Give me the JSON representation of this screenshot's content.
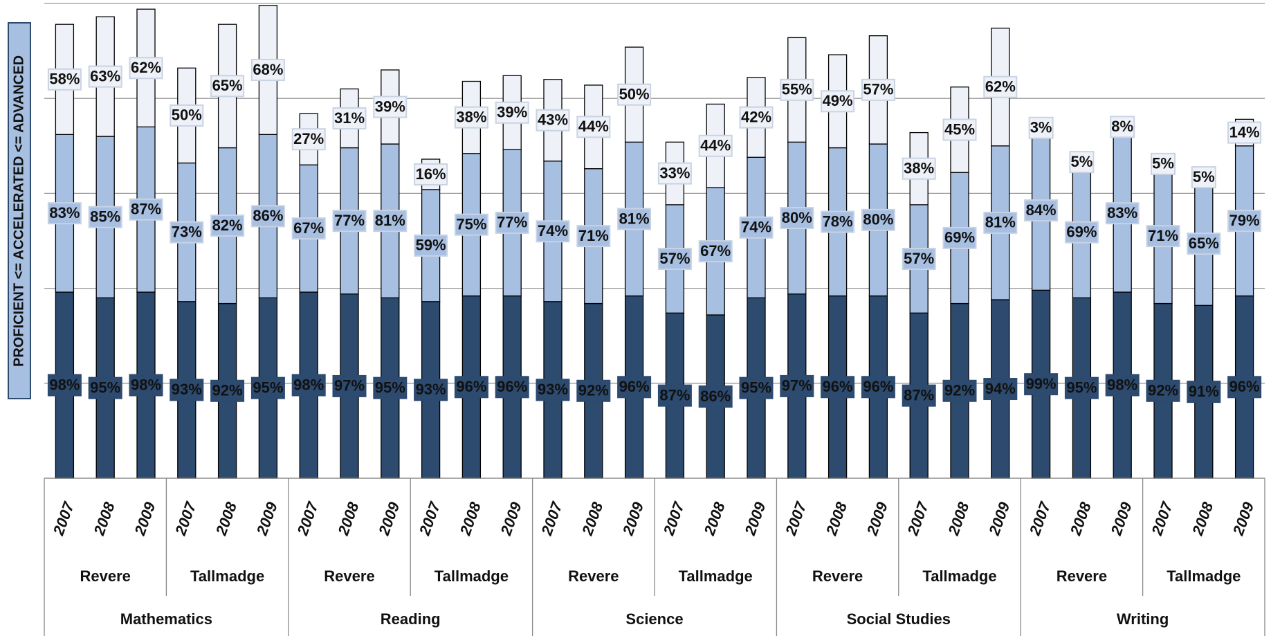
{
  "chart_data": {
    "type": "stacked_bar",
    "y_label": "PROFICIENT <= ACCELERATED <= ADVANCED",
    "categories": [
      "2007",
      "2008",
      "2009",
      "2007",
      "2008",
      "2009",
      "2007",
      "2008",
      "2009",
      "2007",
      "2008",
      "2009",
      "2007",
      "2008",
      "2009",
      "2007",
      "2008",
      "2009",
      "2007",
      "2008",
      "2009",
      "2007",
      "2008",
      "2009",
      "2007",
      "2008",
      "2009",
      "2007",
      "2008",
      "2009"
    ],
    "category_groups": [
      "Revere",
      "Tallmadge",
      "Revere",
      "Tallmadge",
      "Revere",
      "Tallmadge",
      "Revere",
      "Tallmadge",
      "Revere",
      "Tallmadge"
    ],
    "category_supergroups": [
      "Mathematics",
      "Reading",
      "Science",
      "Social Studies",
      "Writing"
    ],
    "series": [
      {
        "color": "#2d4a6f",
        "label_color": "#ffffff",
        "values": [
          98,
          95,
          98,
          93,
          92,
          95,
          98,
          97,
          95,
          93,
          96,
          96,
          93,
          92,
          96,
          87,
          86,
          95,
          97,
          96,
          96,
          87,
          92,
          94,
          99,
          95,
          98,
          92,
          91,
          96
        ],
        "value_labels": [
          "98%",
          "95%",
          "98%",
          "93%",
          "92%",
          "95%",
          "98%",
          "97%",
          "95%",
          "93%",
          "96%",
          "96%",
          "93%",
          "92%",
          "96%",
          "87%",
          "86%",
          "95%",
          "97%",
          "96%",
          "96%",
          "87%",
          "92%",
          "94%",
          "99%",
          "95%",
          "98%",
          "92%",
          "91%",
          "96%"
        ]
      },
      {
        "color": "#a7bfe1",
        "label_color": "#111111",
        "values": [
          83,
          85,
          87,
          73,
          82,
          86,
          67,
          77,
          81,
          59,
          75,
          77,
          74,
          71,
          81,
          57,
          67,
          74,
          80,
          78,
          80,
          57,
          69,
          81,
          84,
          69,
          83,
          71,
          65,
          79
        ],
        "value_labels": [
          "83%",
          "85%",
          "87%",
          "73%",
          "82%",
          "86%",
          "67%",
          "77%",
          "81%",
          "59%",
          "75%",
          "77%",
          "74%",
          "71%",
          "81%",
          "57%",
          "67%",
          "74%",
          "80%",
          "78%",
          "80%",
          "57%",
          "69%",
          "81%",
          "84%",
          "69%",
          "83%",
          "71%",
          "65%",
          "79%"
        ]
      },
      {
        "color": "#eef2f8",
        "label_color": "#111111",
        "values": [
          58,
          63,
          62,
          50,
          65,
          68,
          27,
          31,
          39,
          16,
          38,
          39,
          43,
          44,
          50,
          33,
          44,
          42,
          55,
          49,
          57,
          38,
          45,
          62,
          3,
          5,
          8,
          5,
          5,
          14
        ],
        "value_labels": [
          "58%",
          "63%",
          "62%",
          "50%",
          "65%",
          "68%",
          "27%",
          "31%",
          "39%",
          "16%",
          "38%",
          "39%",
          "43%",
          "44%",
          "50%",
          "33%",
          "44%",
          "42%",
          "55%",
          "49%",
          "57%",
          "38%",
          "45%",
          "62%",
          "3%",
          "5%",
          "8%",
          "5%",
          "5%",
          "14%"
        ]
      }
    ],
    "ylim": [
      0,
      250
    ],
    "yticks": [
      0,
      50,
      100,
      150,
      200,
      250
    ],
    "grid": true
  }
}
